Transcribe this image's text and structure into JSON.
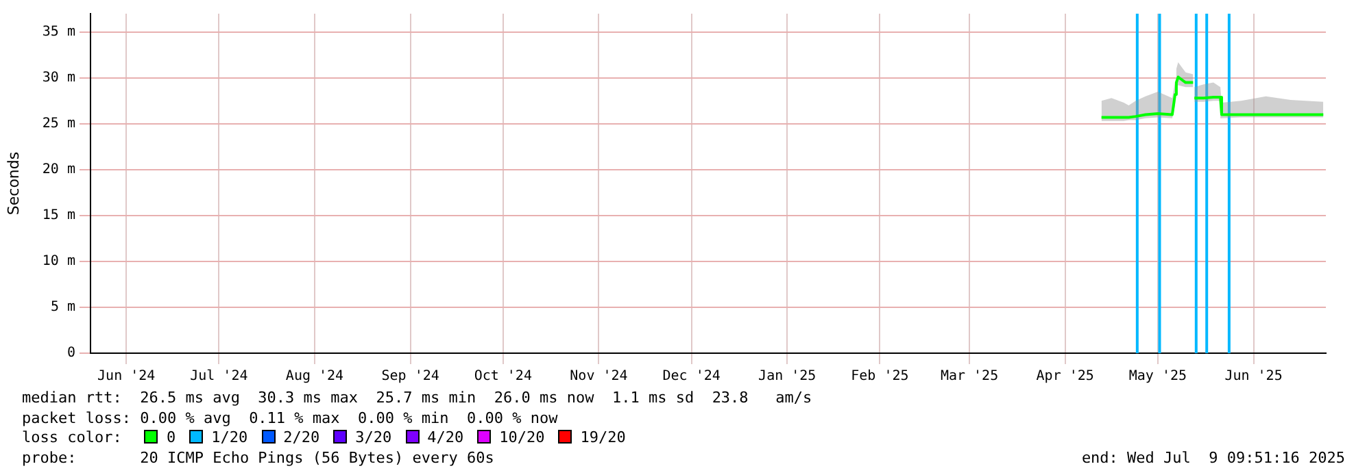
{
  "chart_data": {
    "type": "line",
    "ylabel": "Seconds",
    "legend_title": "loss color:",
    "legend": "bottom",
    "grid": true,
    "marker": "none",
    "line_style": "solid",
    "xlim": [
      "2024-06-04T09:51",
      "2025-07-09T09:51"
    ],
    "xticks": [
      {
        "value": "2024-06-16",
        "label": "Jun '24"
      },
      {
        "value": "2024-07-16",
        "label": "Jul '24"
      },
      {
        "value": "2024-08-16",
        "label": "Aug '24"
      },
      {
        "value": "2024-09-16",
        "label": "Sep '24"
      },
      {
        "value": "2024-10-16",
        "label": "Oct '24"
      },
      {
        "value": "2024-11-16",
        "label": "Nov '24"
      },
      {
        "value": "2024-12-16",
        "label": "Dec '24"
      },
      {
        "value": "2025-01-16",
        "label": "Jan '25"
      },
      {
        "value": "2025-02-15",
        "label": "Feb '25"
      },
      {
        "value": "2025-03-16",
        "label": "Mar '25"
      },
      {
        "value": "2025-04-16",
        "label": "Apr '25"
      },
      {
        "value": "2025-05-16",
        "label": "May '25"
      },
      {
        "value": "2025-06-16",
        "label": "Jun '25"
      }
    ],
    "ylim": [
      0,
      37
    ],
    "yticks": [
      0,
      {
        "value": 5,
        "label": "5 m"
      },
      {
        "value": 10,
        "label": "10 m"
      },
      {
        "value": 15,
        "label": "15 m"
      },
      {
        "value": 20,
        "label": "20 m"
      },
      {
        "value": 25,
        "label": "25 m"
      },
      {
        "value": 30,
        "label": "30 m"
      },
      {
        "value": 35,
        "label": "35 m"
      }
    ],
    "x": [
      "2025-04-27T18:00",
      "2025-05-01T00:00",
      "2025-05-05T00:00",
      "2025-05-06T14:00",
      "2025-05-08T20:00",
      "2025-05-12T00:00",
      "2025-05-16T00:00",
      "2025-05-20T16:00",
      "2025-05-21T14:00",
      "2025-05-22T00:00",
      "2025-05-22T14:00",
      "2025-05-25T00:00",
      "2025-05-27T10:00",
      "2025-05-27T16:00",
      "2025-05-27T20:00",
      "2025-05-30T20:00",
      "2025-06-03T00:00",
      "2025-06-05T06:00",
      "2025-06-05T16:00",
      "2025-06-12T00:00",
      "2025-06-20T00:00",
      "2025-06-28T00:00",
      "2025-07-08T14:00"
    ],
    "series": [
      {
        "name": "0",
        "color": "#00ff00",
        "values": [
          25.7,
          25.7,
          25.7,
          25.7,
          25.8,
          26.0,
          26.1,
          26.0,
          28.2,
          29.5,
          30.1,
          29.5,
          29.5,
          null,
          27.8,
          27.8,
          27.9,
          27.9,
          26.0,
          26.0,
          26.0,
          26.0,
          26.0
        ],
        "lower": [
          25.3,
          25.3,
          25.3,
          25.4,
          25.4,
          25.6,
          25.7,
          25.6,
          27.0,
          29.0,
          29.2,
          29.0,
          29.0,
          null,
          27.4,
          27.4,
          27.5,
          27.5,
          25.6,
          25.7,
          25.7,
          25.7,
          25.7
        ],
        "upper": [
          27.5,
          27.8,
          27.3,
          27.0,
          27.5,
          28.0,
          28.5,
          27.8,
          29.5,
          31.0,
          31.7,
          30.6,
          30.4,
          null,
          29.0,
          29.3,
          29.5,
          29.0,
          27.3,
          27.5,
          28.0,
          27.6,
          27.4
        ]
      },
      {
        "name": "1/20",
        "color": "#00b8ff",
        "values": [
          null,
          null,
          null,
          null,
          null,
          null,
          null,
          null,
          null,
          null,
          null,
          null,
          null,
          null,
          null,
          null,
          null,
          null,
          null,
          null,
          null,
          null,
          null
        ]
      },
      {
        "name": "2/20",
        "color": "#0059ff",
        "values": [
          null,
          null,
          null,
          null,
          null,
          null,
          null,
          null,
          null,
          null,
          null,
          null,
          null,
          null,
          null,
          null,
          null,
          null,
          null,
          null,
          null,
          null,
          null
        ]
      },
      {
        "name": "3/20",
        "color": "#5e00ff",
        "values": [
          null,
          null,
          null,
          null,
          null,
          null,
          null,
          null,
          null,
          null,
          null,
          null,
          null,
          null,
          null,
          null,
          null,
          null,
          null,
          null,
          null,
          null,
          null
        ]
      },
      {
        "name": "4/20",
        "color": "#7e00ff",
        "values": [
          null,
          null,
          null,
          null,
          null,
          null,
          null,
          null,
          null,
          null,
          null,
          null,
          null,
          null,
          null,
          null,
          null,
          null,
          null,
          null,
          null,
          null,
          null
        ]
      },
      {
        "name": "10/20",
        "color": "#dd00ff",
        "values": [
          null,
          null,
          null,
          null,
          null,
          null,
          null,
          null,
          null,
          null,
          null,
          null,
          null,
          null,
          null,
          null,
          null,
          null,
          null,
          null,
          null,
          null,
          null
        ]
      },
      {
        "name": "19/20",
        "color": "#ff0000",
        "values": [
          null,
          null,
          null,
          null,
          null,
          null,
          null,
          null,
          null,
          null,
          null,
          null,
          null,
          null,
          null,
          null,
          null,
          null,
          null,
          null,
          null,
          null,
          null
        ]
      }
    ],
    "ref_lines": [
      {
        "axis": "x",
        "value": "2025-05-09T08:00",
        "color": "#00b8ff"
      },
      {
        "axis": "x",
        "value": "2025-05-16T14:00",
        "color": "#00b8ff"
      },
      {
        "axis": "x",
        "value": "2025-05-28T10:00",
        "color": "#00b8ff"
      },
      {
        "axis": "x",
        "value": "2025-05-31T20:00",
        "color": "#00b8ff"
      },
      {
        "axis": "x",
        "value": "2025-06-08T02:00",
        "color": "#00b8ff"
      }
    ],
    "annotations": [
      "median rtt:  26.5 ms avg  30.3 ms max  25.7 ms min  26.0 ms now  1.1 ms sd  23.8   am/s",
      "packet loss: 0.00 % avg  0.11 % max  0.00 % min  0.00 % now",
      "probe:       20 ICMP Echo Pings (56 Bytes) every 60s",
      "end: Wed Jul  9 09:51:16 2025"
    ]
  }
}
